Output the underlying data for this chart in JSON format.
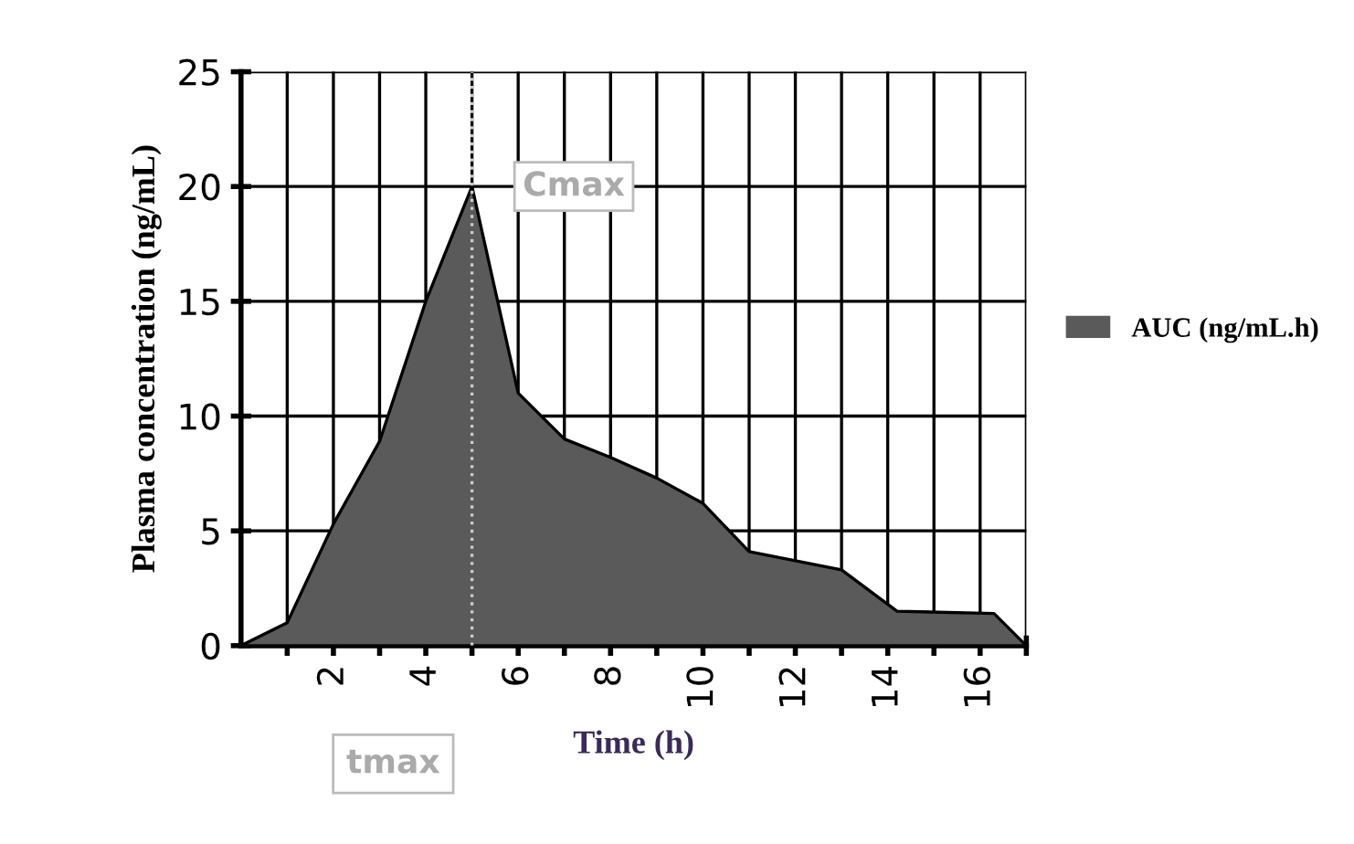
{
  "chart_data": {
    "type": "area",
    "xlabel": "Time (h)",
    "ylabel": "Plasma concentration (ng/mL)",
    "series": [
      {
        "name": "AUC (ng/mL.h)",
        "color": "#5a5a5a",
        "x": [
          0,
          1,
          2,
          3,
          4,
          5,
          6,
          7,
          8,
          9,
          10,
          11,
          12,
          13,
          14.2,
          16.3,
          17
        ],
        "values": [
          0,
          1,
          5.3,
          8.9,
          15,
          20,
          11,
          9,
          8.2,
          7.3,
          6.2,
          4.1,
          3.7,
          3.3,
          1.5,
          1.4,
          0
        ]
      }
    ],
    "xlim": [
      0,
      17
    ],
    "ylim": [
      0,
      25
    ],
    "xticks": [
      {
        "value": 1,
        "label": null
      },
      2,
      {
        "value": 3,
        "label": null
      },
      4,
      {
        "value": 5,
        "label": null
      },
      6,
      {
        "value": 7,
        "label": null
      },
      8,
      {
        "value": 9,
        "label": null
      },
      10,
      {
        "value": 11,
        "label": null
      },
      12,
      {
        "value": 13,
        "label": null
      },
      14,
      {
        "value": 15,
        "label": null
      },
      16,
      {
        "value": 17,
        "label": null
      }
    ],
    "yticks": [
      0,
      5,
      10,
      15,
      20,
      25
    ],
    "grid": true,
    "legend": "right",
    "ref_lines": [
      {
        "axis": "x",
        "value": 5,
        "color": "#cccccc",
        "line_style": "dotted"
      }
    ],
    "annotations": [
      {
        "text": "Cmax",
        "x": 5,
        "y": 20
      },
      "tmax"
    ]
  }
}
